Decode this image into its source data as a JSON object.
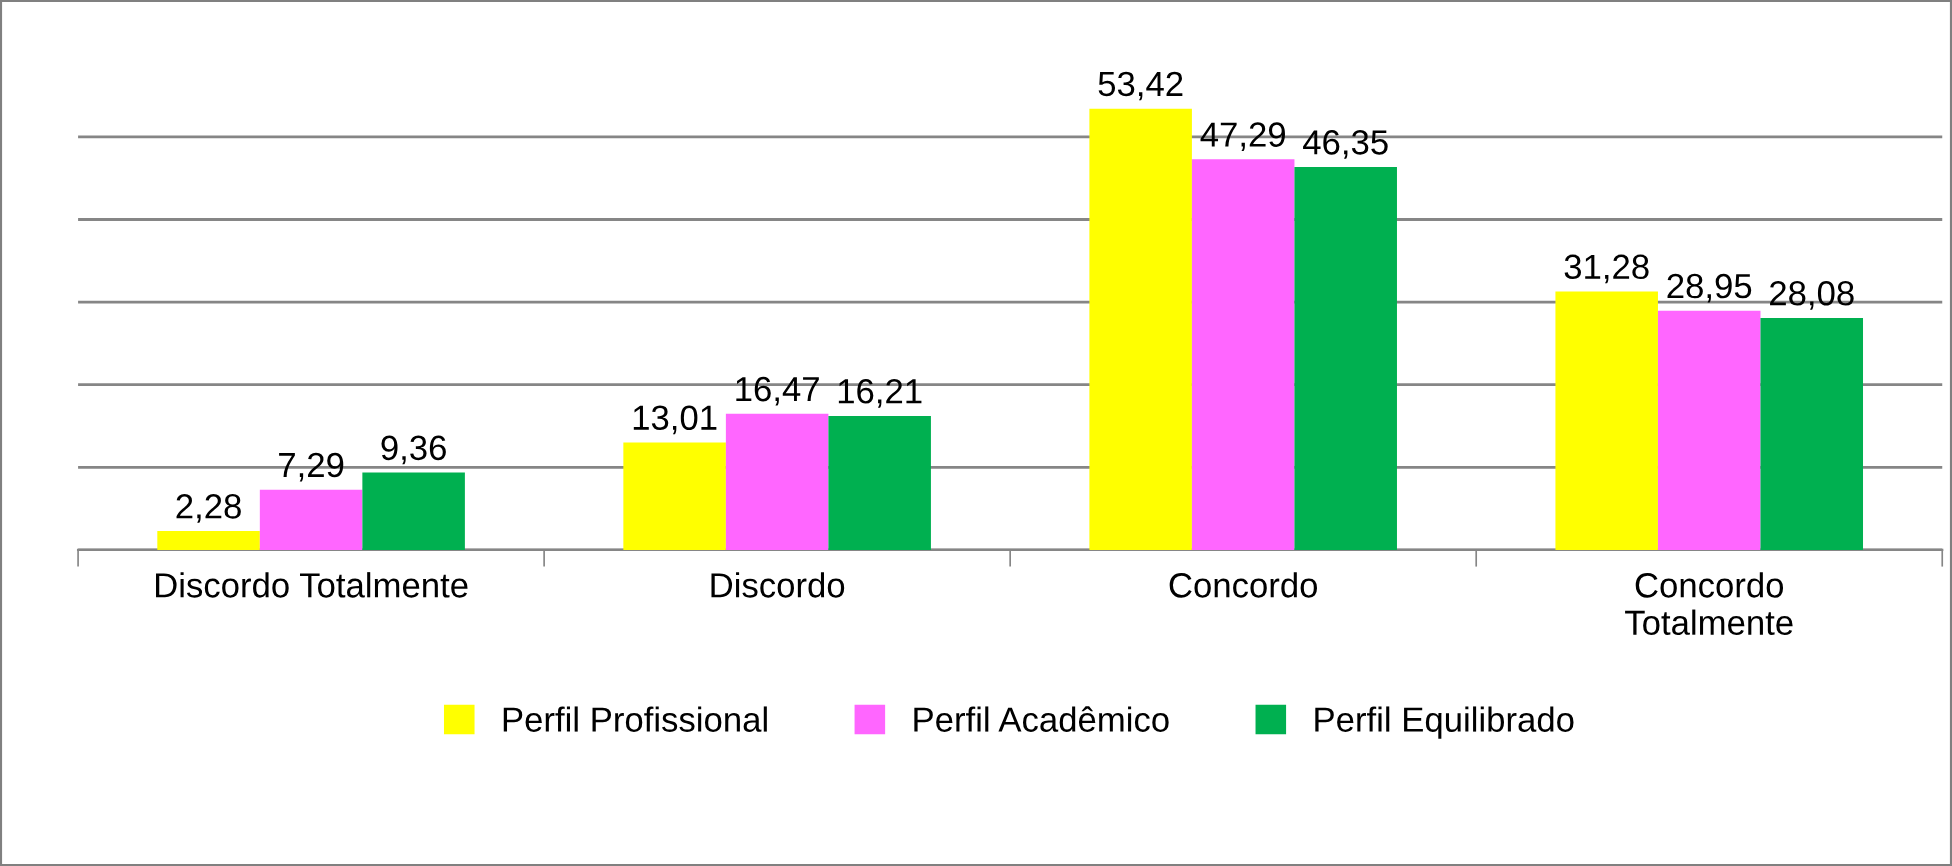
{
  "chart_data": {
    "type": "bar",
    "categories": [
      "Discordo Totalmente",
      "Discordo",
      "Concordo",
      "Concordo\nTotalmente"
    ],
    "series": [
      {
        "name": "Perfil Profissional",
        "color": "#ffff00",
        "values": [
          2.28,
          13.01,
          53.42,
          31.28
        ],
        "value_labels": [
          "2,28",
          "13,01",
          "53,42",
          "31,28"
        ]
      },
      {
        "name": "Perfil Acadêmico",
        "color": "#ff66ff",
        "values": [
          7.29,
          16.47,
          47.29,
          28.95
        ],
        "value_labels": [
          "7,29",
          "16,47",
          "47,29",
          "28,95"
        ]
      },
      {
        "name": "Perfil Equilibrado",
        "color": "#00b050",
        "values": [
          9.36,
          16.21,
          46.35,
          28.08
        ],
        "value_labels": [
          "9,36",
          "16,21",
          "46,35",
          "28,08"
        ]
      }
    ],
    "tick_labels": "x",
    "grid": "y",
    "legend": "bottom"
  }
}
